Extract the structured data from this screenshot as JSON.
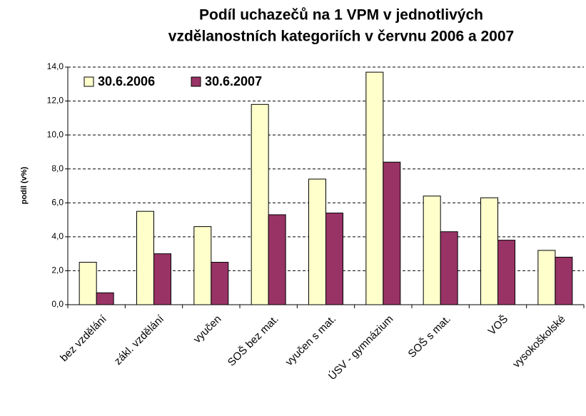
{
  "chart_data": {
    "type": "bar",
    "title": [
      "Podíl uchazečů na 1 VPM v jednotlivých",
      "vzdělanostních kategoriích v červnu 2006 a 2007"
    ],
    "y_label": "podíl (v%)",
    "categories": [
      "bez vzdělání",
      "zákl. vzdělání",
      "vyučen",
      "SOŠ bez mat.",
      "vyučen s mat.",
      "ÚSV - gymnázium",
      "SOŠ s mat.",
      "VOŠ",
      "vysokoškolské"
    ],
    "series": [
      {
        "name": "30.6.2006",
        "color": "#ffffcc",
        "values": [
          2.5,
          5.5,
          4.6,
          11.8,
          7.4,
          13.7,
          6.4,
          6.3,
          3.2
        ]
      },
      {
        "name": "30.6.2007",
        "color": "#993366",
        "values": [
          0.7,
          3.0,
          2.5,
          5.3,
          5.4,
          8.4,
          4.3,
          3.8,
          2.8
        ]
      }
    ],
    "ylim": [
      0,
      14
    ],
    "yticks": [
      {
        "value": 0,
        "label": "0,0"
      },
      {
        "value": 2,
        "label": "2,0"
      },
      {
        "value": 4,
        "label": "4,0"
      },
      {
        "value": 6,
        "label": "6,0"
      },
      {
        "value": 8,
        "label": "8,0"
      },
      {
        "value": 10,
        "label": "10,0"
      },
      {
        "value": 12,
        "label": "12,0"
      },
      {
        "value": 14,
        "label": "14,0"
      }
    ],
    "grid": true,
    "legend": "top-left"
  }
}
